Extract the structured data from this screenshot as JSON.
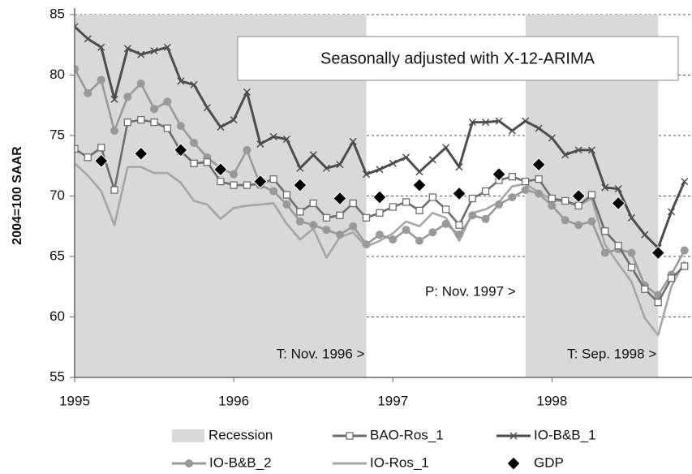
{
  "chart_data": {
    "type": "line",
    "annotation_box": "Seasonally adjusted with X-12-ARIMA",
    "y_label": "2004=100 SAAR",
    "xlim": [
      1995,
      1998.88
    ],
    "xticks": [
      1995,
      1996,
      1997,
      1998
    ],
    "ylim": [
      55,
      85
    ],
    "yticks": [
      55,
      60,
      65,
      70,
      75,
      80,
      85
    ],
    "grid": true,
    "recession_label": "Recession",
    "recession_color": "#d9d9d9",
    "recessions": [
      [
        1995,
        1996.833
      ],
      [
        1997.833,
        1998.667
      ]
    ],
    "recession_notes": [
      "T: Nov. 1996 >",
      "T: Sep. 1998 >"
    ],
    "peak_note": "P: Nov. 1997 >",
    "x": [
      1995,
      1995.083,
      1995.167,
      1995.25,
      1995.333,
      1995.417,
      1995.5,
      1995.583,
      1995.667,
      1995.75,
      1995.833,
      1995.917,
      1996,
      1996.083,
      1996.167,
      1996.25,
      1996.333,
      1996.417,
      1996.5,
      1996.583,
      1996.667,
      1996.75,
      1996.833,
      1996.917,
      1997,
      1997.083,
      1997.167,
      1997.25,
      1997.333,
      1997.417,
      1997.5,
      1997.583,
      1997.667,
      1997.75,
      1997.833,
      1997.917,
      1998,
      1998.083,
      1998.167,
      1998.25,
      1998.333,
      1998.417,
      1998.5,
      1998.583,
      1998.667,
      1998.75,
      1998.833
    ],
    "series": [
      {
        "name": "BAO-Ros_1",
        "color": "#6e6e6e",
        "marker": "square",
        "line": true,
        "values": [
          73.9,
          73.2,
          74.0,
          70.5,
          76.1,
          76.3,
          76.1,
          75.6,
          73.7,
          72.7,
          72.8,
          71.2,
          70.9,
          70.9,
          71.0,
          71.4,
          70.1,
          68.7,
          69.4,
          68.2,
          68.4,
          69.4,
          68.2,
          68.6,
          69.1,
          69.5,
          68.8,
          69.9,
          68.9,
          67.6,
          69.8,
          70.4,
          71.3,
          71.6,
          71.2,
          71.4,
          69.8,
          69.6,
          69.2,
          70.1,
          67.1,
          65.9,
          64.1,
          62.3,
          61.2,
          63.2,
          64.2
        ]
      },
      {
        "name": "IO-B&B_1",
        "color": "#4d4d4d",
        "marker": "x",
        "line": true,
        "values": [
          84.0,
          83.0,
          82.3,
          78.0,
          82.2,
          81.7,
          82.0,
          82.3,
          79.5,
          79.2,
          77.3,
          75.7,
          76.3,
          78.6,
          74.3,
          74.9,
          74.7,
          72.3,
          73.4,
          72.3,
          72.6,
          74.5,
          71.8,
          72.2,
          72.7,
          73.2,
          72.0,
          73.0,
          74.0,
          72.4,
          76.1,
          76.1,
          76.2,
          75.4,
          76.2,
          75.6,
          74.8,
          73.4,
          73.8,
          73.8,
          70.7,
          70.6,
          68.2,
          66.8,
          65.7,
          68.7,
          71.2
        ]
      },
      {
        "name": "IO-B&B_2",
        "color": "#999999",
        "marker": "circle",
        "line": true,
        "values": [
          80.5,
          78.5,
          79.6,
          75.4,
          78.2,
          79.3,
          77.2,
          77.8,
          75.8,
          74.4,
          73.2,
          72.3,
          71.8,
          73.8,
          70.9,
          70.4,
          69.3,
          67.9,
          67.6,
          67.2,
          66.8,
          67.5,
          66.0,
          66.8,
          66.4,
          67.2,
          66.3,
          67.0,
          67.7,
          66.8,
          68.4,
          68.1,
          69.3,
          69.9,
          70.5,
          70.2,
          69.2,
          68.0,
          67.6,
          67.9,
          65.3,
          65.6,
          65.3,
          62.6,
          61.8,
          63.5,
          65.5
        ]
      },
      {
        "name": "IO-Ros_1",
        "color": "#a6a6a6",
        "marker": "none",
        "line": true,
        "values": [
          72.7,
          71.7,
          70.4,
          67.6,
          72.4,
          72.4,
          71.9,
          71.9,
          71.1,
          69.6,
          69.3,
          68.1,
          69.0,
          69.2,
          69.3,
          69.4,
          67.7,
          66.4,
          67.3,
          64.9,
          66.6,
          67.0,
          65.8,
          66.3,
          66.9,
          67.9,
          67.5,
          68.6,
          68.2,
          66.3,
          68.6,
          68.9,
          69.5,
          70.8,
          71.0,
          70.3,
          69.7,
          69.5,
          69.2,
          69.8,
          66.0,
          64.4,
          62.9,
          59.9,
          58.5,
          62.5,
          64.6
        ]
      },
      {
        "name": "GDP",
        "color": "#000000",
        "marker": "diamond",
        "line": false,
        "x": [
          1995.167,
          1995.417,
          1995.667,
          1995.917,
          1996.167,
          1996.417,
          1996.667,
          1996.917,
          1997.167,
          1997.417,
          1997.667,
          1997.917,
          1998.167,
          1998.417,
          1998.667
        ],
        "values": [
          72.9,
          73.5,
          73.8,
          72.2,
          71.2,
          70.9,
          69.8,
          69.9,
          70.9,
          70.2,
          71.8,
          72.6,
          70.0,
          69.4,
          65.3
        ]
      }
    ]
  }
}
